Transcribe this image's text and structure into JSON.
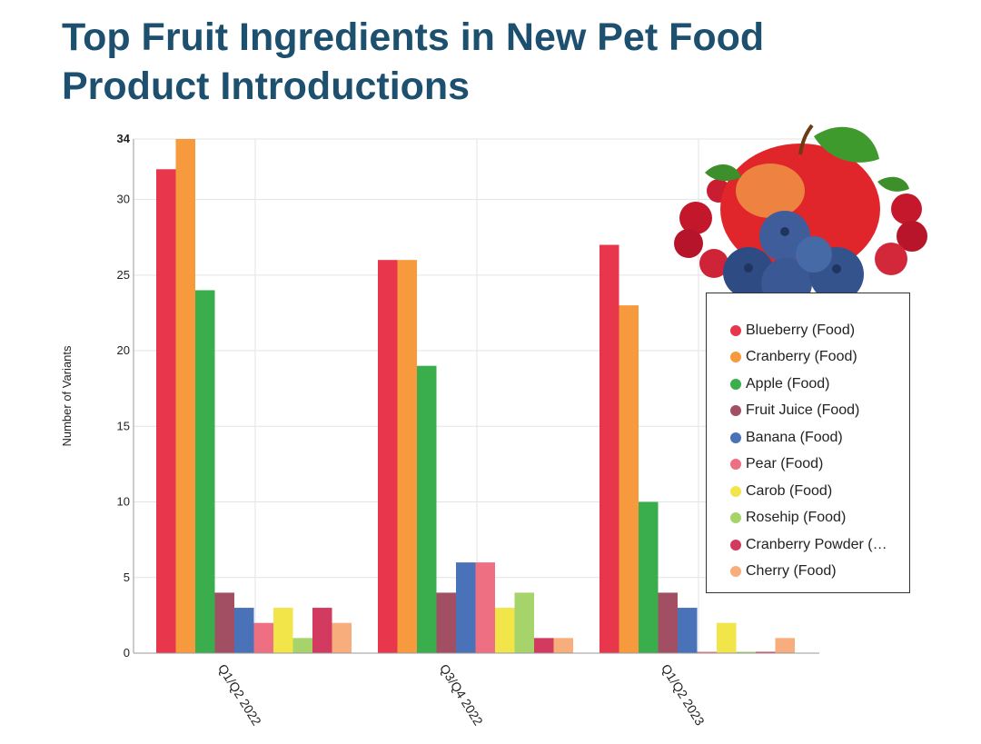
{
  "title": "Top Fruit Ingredients in New Pet Food Product Introductions",
  "chart_data": {
    "type": "bar",
    "title": "Top Fruit Ingredients in New Pet Food Product Introductions",
    "xlabel": "",
    "ylabel": "Number of Variants",
    "ylim": [
      0,
      34
    ],
    "yticks": [
      0,
      5,
      10,
      15,
      20,
      25,
      30,
      34
    ],
    "grid": true,
    "legend_position": "right",
    "categories": [
      "Q1/Q2 2022",
      "Q3/Q4 2022",
      "Q1/Q2 2023"
    ],
    "series": [
      {
        "name": "Blueberry (Food)",
        "color": "#e8374d",
        "values": [
          32,
          26,
          27
        ]
      },
      {
        "name": "Cranberry (Food)",
        "color": "#f79a3e",
        "values": [
          34,
          26,
          23
        ]
      },
      {
        "name": "Apple (Food)",
        "color": "#3aad4c",
        "values": [
          24,
          19,
          10
        ]
      },
      {
        "name": "Fruit Juice (Food)",
        "color": "#a24f63",
        "values": [
          4,
          4,
          4
        ]
      },
      {
        "name": "Banana (Food)",
        "color": "#4a72b8",
        "values": [
          3,
          6,
          3
        ]
      },
      {
        "name": "Pear (Food)",
        "color": "#ee6f82",
        "values": [
          2,
          6,
          0
        ]
      },
      {
        "name": "Carob (Food)",
        "color": "#f2e54a",
        "values": [
          3,
          3,
          2
        ]
      },
      {
        "name": "Rosehip (Food)",
        "color": "#a6d36a",
        "values": [
          1,
          4,
          0
        ]
      },
      {
        "name": "Cranberry Powder (…",
        "color": "#d23a5f",
        "values": [
          3,
          1,
          0
        ]
      },
      {
        "name": "Cherry (Food)",
        "color": "#f7ad7c",
        "values": [
          2,
          1,
          1
        ]
      }
    ]
  }
}
